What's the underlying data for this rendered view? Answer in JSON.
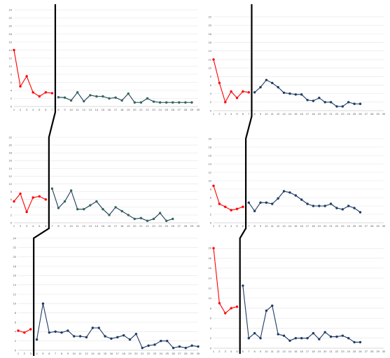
{
  "colors": {
    "baseline": "#ff0000",
    "treatment": "#1f3b66",
    "treatment_alt": "#2e6b4f",
    "phase_line": "#000000",
    "grid": "#e4e4e4"
  },
  "chart_data": [
    {
      "type": "line",
      "panel": "top-left",
      "x_ticks": [
        1,
        2,
        3,
        4,
        5,
        6,
        7,
        8,
        9,
        10,
        11,
        12,
        13,
        14,
        15,
        16,
        17,
        18,
        19,
        20,
        21,
        22,
        23,
        24,
        25,
        26,
        27,
        28,
        29,
        30
      ],
      "y_ticks": [
        0,
        2,
        4,
        6,
        8,
        10,
        12,
        14,
        16,
        18,
        20,
        22,
        24
      ],
      "ylim": [
        0,
        24
      ],
      "phase_change_after": 7.5,
      "treatment_color": "treatment_alt",
      "series": [
        {
          "role": "baseline",
          "x": [
            1,
            2,
            3,
            4,
            5,
            6,
            7
          ],
          "y": [
            14,
            5,
            7.5,
            3.5,
            2.5,
            3.5,
            3.3
          ]
        },
        {
          "role": "treatment",
          "x": [
            8,
            9,
            10,
            11,
            12,
            13,
            14,
            15,
            16,
            17,
            18,
            19,
            20,
            21,
            22,
            23,
            24,
            25,
            26,
            27,
            28,
            29
          ],
          "y": [
            2.3,
            2.2,
            1.5,
            3.5,
            1.3,
            2.8,
            2.5,
            2.5,
            2,
            2.2,
            1.5,
            3.2,
            1,
            1,
            2,
            1.2,
            1,
            1,
            1,
            1,
            1,
            1
          ]
        }
      ]
    },
    {
      "type": "line",
      "panel": "top-right",
      "x_ticks": [
        1,
        2,
        3,
        4,
        5,
        6,
        7,
        8,
        9,
        10,
        11,
        12,
        13,
        14,
        15,
        16,
        17,
        18,
        19,
        20,
        21,
        22,
        23,
        24,
        25,
        26,
        27,
        28,
        29,
        30
      ],
      "y_ticks": [
        0,
        2,
        4,
        6,
        8,
        10,
        12,
        14,
        16,
        18,
        20,
        22
      ],
      "ylim": [
        0,
        22
      ],
      "phase_change_after": 7.5,
      "treatment_color": "treatment",
      "series": [
        {
          "role": "baseline",
          "x": [
            1,
            2,
            3,
            4,
            5,
            6,
            7
          ],
          "y": [
            12,
            6.5,
            2,
            4.5,
            3,
            4.5,
            4.3
          ]
        },
        {
          "role": "treatment",
          "x": [
            8,
            9,
            10,
            11,
            12,
            13,
            14,
            15,
            16,
            17,
            18,
            19,
            20,
            21,
            22,
            23,
            24,
            25,
            26
          ],
          "y": [
            4.3,
            5.5,
            7.2,
            6.5,
            5.5,
            4.2,
            4,
            3.8,
            3.8,
            2.5,
            2.3,
            3,
            2,
            2,
            1,
            1,
            2,
            1.6,
            1.6
          ]
        }
      ]
    },
    {
      "type": "line",
      "panel": "middle-left",
      "x_ticks": [
        1,
        2,
        3,
        4,
        5,
        6,
        7,
        8,
        9,
        10,
        11,
        12,
        13,
        14,
        15,
        16,
        17,
        18,
        19,
        20,
        21,
        22,
        23,
        24,
        25,
        26,
        27,
        28,
        29,
        30
      ],
      "y_ticks": [
        0,
        2,
        4,
        6,
        8,
        10,
        12,
        14,
        16,
        18,
        20,
        22
      ],
      "ylim": [
        0,
        22
      ],
      "phase_change_after": 6.5,
      "treatment_color": "treatment_alt",
      "series": [
        {
          "role": "baseline",
          "x": [
            1,
            2,
            3,
            4,
            5,
            6
          ],
          "y": [
            5.5,
            7.5,
            2.8,
            6.5,
            6.8,
            6
          ]
        },
        {
          "role": "treatment",
          "x": [
            7,
            8,
            9,
            10,
            11,
            12,
            13,
            14,
            15,
            16,
            17,
            18,
            19,
            20,
            21,
            22,
            23,
            24,
            25,
            26
          ],
          "y": [
            8.8,
            3.8,
            5.5,
            8.3,
            3.5,
            3.5,
            4.5,
            5.5,
            3.5,
            2,
            4,
            3,
            2,
            1,
            1.2,
            0.5,
            1,
            2.5,
            0.5,
            1
          ]
        }
      ]
    },
    {
      "type": "line",
      "panel": "middle-right",
      "x_ticks": [
        1,
        2,
        3,
        4,
        5,
        6,
        7,
        8,
        9,
        10,
        11,
        12,
        13,
        14,
        15,
        16,
        17,
        18,
        19,
        20,
        21,
        22,
        23,
        24,
        25,
        26,
        27,
        28,
        29,
        30
      ],
      "y_ticks": [
        0,
        2,
        4,
        6,
        8,
        10,
        12,
        14,
        16,
        18,
        20
      ],
      "ylim": [
        0,
        20
      ],
      "phase_change_after": 6.5,
      "treatment_color": "treatment",
      "series": [
        {
          "role": "baseline",
          "x": [
            1,
            2,
            3,
            4,
            5,
            6
          ],
          "y": [
            8.8,
            4.5,
            3.8,
            3,
            3.3,
            3.8
          ]
        },
        {
          "role": "treatment",
          "x": [
            7,
            8,
            9,
            10,
            11,
            12,
            13,
            14,
            15,
            16,
            17,
            18,
            19,
            20,
            21,
            22,
            23,
            24,
            25,
            26
          ],
          "y": [
            4.8,
            2.8,
            4.8,
            4.8,
            4.5,
            5.8,
            7.5,
            7.2,
            6.5,
            5.5,
            4.5,
            4,
            4,
            4,
            4.5,
            3.5,
            3.2,
            4,
            3.5,
            2.5
          ]
        }
      ]
    },
    {
      "type": "line",
      "panel": "bottom-left",
      "x_ticks": [
        1,
        2,
        3,
        4,
        5,
        6,
        7,
        8,
        9,
        10,
        11,
        12,
        13,
        14,
        15,
        16,
        17,
        18,
        19,
        20,
        21,
        22,
        23,
        24,
        25,
        26,
        27,
        28,
        29,
        30
      ],
      "y_ticks": [
        0,
        2,
        4,
        6,
        8,
        10,
        12,
        14,
        16,
        18,
        20,
        22,
        24
      ],
      "ylim": [
        0,
        24
      ],
      "phase_change_after": 3.5,
      "treatment_color": "treatment",
      "series": [
        {
          "role": "baseline",
          "x": [
            1,
            2,
            3
          ],
          "y": [
            4.2,
            3.8,
            4.5
          ]
        },
        {
          "role": "treatment",
          "x": [
            4,
            5,
            6,
            7,
            8,
            9,
            10,
            11,
            12,
            13,
            14,
            15,
            16,
            17,
            18,
            19,
            20,
            21,
            22,
            23,
            24,
            25,
            26,
            27,
            28,
            29,
            30
          ],
          "y": [
            2.3,
            10,
            3.8,
            4,
            3.8,
            4.2,
            3,
            3,
            2.8,
            4.8,
            4.8,
            3,
            2.5,
            2.8,
            3.2,
            2.3,
            3.5,
            0.5,
            1,
            1.2,
            2,
            2,
            0.5,
            0.8,
            0.5,
            1,
            0.8
          ]
        }
      ]
    },
    {
      "type": "line",
      "panel": "bottom-right",
      "x_ticks": [
        1,
        2,
        3,
        4,
        5,
        6,
        7,
        8,
        9,
        10,
        11,
        12,
        13,
        14,
        15,
        16,
        17,
        18,
        19,
        20,
        21,
        22,
        23,
        24,
        25,
        26,
        27,
        28,
        29,
        30
      ],
      "y_ticks": [
        0,
        2,
        4,
        6,
        8,
        10,
        12,
        14,
        16,
        18,
        20
      ],
      "ylim": [
        0,
        22
      ],
      "phase_change_after": 5.5,
      "treatment_color": "treatment",
      "series": [
        {
          "role": "baseline",
          "x": [
            1,
            2,
            3,
            4,
            5
          ],
          "y": [
            20,
            9,
            7,
            8,
            8.3
          ]
        },
        {
          "role": "treatment",
          "x": [
            6,
            7,
            8,
            9,
            10,
            11,
            12,
            13,
            14,
            15,
            16,
            17,
            18,
            19,
            20,
            21,
            22,
            23,
            24,
            25,
            26
          ],
          "y": [
            12.5,
            2,
            3,
            2,
            7.5,
            8.5,
            2.8,
            2.5,
            1.5,
            2,
            2,
            2,
            3,
            1.8,
            3.2,
            2.3,
            2.3,
            2.5,
            2,
            1.2,
            1.2
          ]
        }
      ]
    }
  ]
}
